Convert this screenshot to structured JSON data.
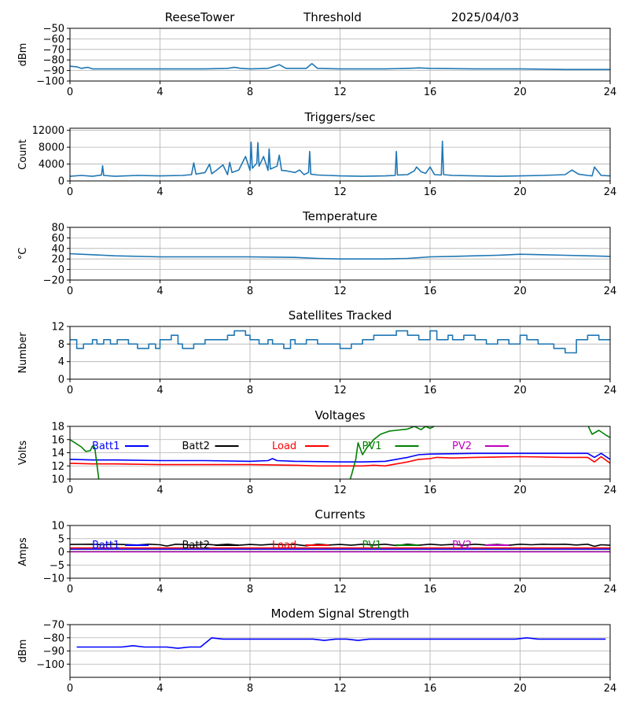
{
  "header": {
    "station": "ReeseTower",
    "mode": "Threshold",
    "date": "2025/04/03"
  },
  "chart_data": [
    {
      "type": "line",
      "title": "",
      "xlabel": "",
      "ylabel": "dBm",
      "xlim": [
        0,
        24
      ],
      "ylim": [
        -100,
        -50
      ],
      "xticks": [
        0,
        4,
        8,
        12,
        16,
        20,
        24
      ],
      "yticks": [
        -100,
        -90,
        -80,
        -70,
        -60,
        -50
      ],
      "grid": true,
      "series": [
        {
          "color": "#1f77b4",
          "x": [
            0,
            0.3,
            0.5,
            0.8,
            1,
            2,
            4,
            6,
            7,
            7.3,
            7.6,
            8,
            8.8,
            9.1,
            9.3,
            9.6,
            10,
            10.5,
            10.75,
            11,
            12,
            14,
            15,
            15.5,
            16,
            18,
            20,
            22,
            24
          ],
          "y": [
            -86,
            -86.5,
            -88,
            -87,
            -88.5,
            -88.5,
            -88.5,
            -88.5,
            -88,
            -87,
            -88,
            -88.5,
            -88,
            -86,
            -84.5,
            -88,
            -88,
            -88,
            -83.5,
            -88,
            -88.5,
            -88.5,
            -88,
            -87.5,
            -88,
            -88.5,
            -88.5,
            -89,
            -89
          ]
        }
      ]
    },
    {
      "type": "line",
      "title": "Triggers/sec",
      "xlabel": "",
      "ylabel": "Count",
      "xlim": [
        0,
        24
      ],
      "ylim": [
        0,
        12500
      ],
      "xticks": [
        0,
        4,
        8,
        12,
        16,
        20,
        24
      ],
      "yticks": [
        0,
        4000,
        8000,
        12000
      ],
      "grid": true,
      "series": [
        {
          "color": "#1f77b4",
          "x": [
            0,
            0.5,
            1,
            1.4,
            1.45,
            1.5,
            2,
            3,
            4,
            5,
            5.4,
            5.5,
            5.6,
            6,
            6.2,
            6.3,
            6.5,
            6.8,
            7,
            7.1,
            7.2,
            7.5,
            7.8,
            8,
            8.05,
            8.1,
            8.3,
            8.35,
            8.4,
            8.6,
            8.8,
            8.85,
            8.9,
            9.2,
            9.3,
            9.4,
            9.6,
            10,
            10.2,
            10.4,
            10.6,
            10.65,
            10.7,
            10.9,
            11,
            11.5,
            12,
            13,
            14,
            14.45,
            14.5,
            14.55,
            15,
            15.3,
            15.4,
            15.6,
            15.8,
            16,
            16.2,
            16.5,
            16.55,
            16.6,
            17,
            18,
            19,
            20,
            21,
            22,
            22.3,
            22.6,
            23,
            23.2,
            23.3,
            23.6,
            24
          ],
          "y": [
            1100,
            1300,
            1100,
            1400,
            3600,
            1300,
            1100,
            1300,
            1200,
            1300,
            1500,
            4300,
            1600,
            2000,
            4000,
            1700,
            2500,
            3800,
            1500,
            4400,
            2000,
            2600,
            5800,
            2500,
            9200,
            3000,
            4200,
            9100,
            3500,
            5800,
            2500,
            7600,
            2800,
            3500,
            6100,
            2500,
            2400,
            2000,
            2600,
            1500,
            2000,
            7000,
            1600,
            1500,
            1400,
            1300,
            1200,
            1100,
            1200,
            1300,
            7000,
            1400,
            1500,
            2400,
            3300,
            2200,
            1800,
            3300,
            1500,
            1400,
            9400,
            1500,
            1300,
            1200,
            1100,
            1200,
            1300,
            1500,
            2600,
            1600,
            1300,
            1200,
            3300,
            1300,
            1200
          ]
        }
      ]
    },
    {
      "type": "line",
      "title": "Temperature",
      "xlabel": "",
      "ylabel": "°C",
      "xlim": [
        0,
        24
      ],
      "ylim": [
        -20,
        80
      ],
      "xticks": [
        0,
        4,
        8,
        12,
        16,
        20,
        24
      ],
      "yticks": [
        -20,
        0,
        20,
        40,
        60,
        80
      ],
      "grid": true,
      "series": [
        {
          "color": "#1f77b4",
          "x": [
            0,
            0.5,
            1,
            2,
            4,
            6,
            8,
            10,
            11,
            12,
            13,
            14,
            15,
            16,
            17,
            18,
            19,
            20,
            21,
            22,
            23,
            24
          ],
          "y": [
            30,
            29,
            28,
            26,
            24,
            24,
            24,
            23,
            21,
            20,
            20,
            20,
            21,
            24,
            25,
            26,
            27,
            29,
            28,
            27,
            26,
            25
          ]
        }
      ]
    },
    {
      "type": "line",
      "title": "Satellites Tracked",
      "xlabel": "",
      "ylabel": "Number",
      "xlim": [
        0,
        24
      ],
      "ylim": [
        0,
        12
      ],
      "xticks": [
        0,
        4,
        8,
        12,
        16,
        20,
        24
      ],
      "yticks": [
        0,
        4,
        8,
        12
      ],
      "grid": true,
      "step": true,
      "series": [
        {
          "color": "#1f77b4",
          "x": [
            0,
            0.3,
            0.6,
            1,
            1.2,
            1.5,
            1.8,
            2.1,
            2.6,
            3,
            3.5,
            3.8,
            4,
            4.5,
            4.8,
            5,
            5.5,
            6,
            6.3,
            7,
            7.3,
            7.8,
            8,
            8.4,
            8.8,
            9,
            9.5,
            9.8,
            10,
            10.5,
            11,
            11.5,
            12,
            12.5,
            13,
            13.5,
            14,
            14.5,
            15,
            15.5,
            16,
            16.3,
            16.8,
            17,
            17.5,
            18,
            18.5,
            19,
            19.5,
            20,
            20.3,
            20.8,
            21,
            21.5,
            22,
            22.5,
            23,
            23.5,
            24
          ],
          "y": [
            9,
            7,
            8,
            9,
            8,
            9,
            8,
            9,
            8,
            7,
            8,
            7,
            9,
            10,
            8,
            7,
            8,
            9,
            9,
            10,
            11,
            10,
            9,
            8,
            9,
            8,
            7,
            9,
            8,
            9,
            8,
            8,
            7,
            8,
            9,
            10,
            10,
            11,
            10,
            9,
            11,
            9,
            10,
            9,
            10,
            9,
            8,
            9,
            8,
            10,
            9,
            8,
            8,
            7,
            6,
            9,
            10,
            9,
            9
          ]
        }
      ]
    },
    {
      "type": "line",
      "title": "Voltages",
      "xlabel": "",
      "ylabel": "Volts",
      "xlim": [
        0,
        24
      ],
      "ylim": [
        10,
        18
      ],
      "xticks": [
        0,
        4,
        8,
        12,
        16,
        20,
        24
      ],
      "yticks": [
        10,
        12,
        14,
        16,
        18
      ],
      "grid": true,
      "legend": "top, single row",
      "series": [
        {
          "name": "Batt1",
          "color": "#0000ff",
          "x": [
            0,
            1,
            2,
            4,
            6,
            8,
            8.8,
            9,
            9.2,
            10,
            12,
            13,
            14,
            14.5,
            15,
            15.5,
            16,
            18,
            20,
            22,
            23,
            23.3,
            23.6,
            24
          ],
          "y": [
            13,
            12.9,
            12.9,
            12.8,
            12.8,
            12.7,
            12.8,
            13.1,
            12.8,
            12.7,
            12.6,
            12.6,
            12.7,
            13,
            13.3,
            13.7,
            13.8,
            13.9,
            13.9,
            13.9,
            13.9,
            13.3,
            13.9,
            13
          ]
        },
        {
          "name": "Batt2",
          "color": "#000000",
          "x": [],
          "y": []
        },
        {
          "name": "Load",
          "color": "#ff0000",
          "x": [
            0,
            1,
            2,
            4,
            6,
            8,
            10,
            11,
            12,
            13,
            13.5,
            14,
            14.5,
            15,
            15.5,
            16,
            16.3,
            17,
            18,
            20,
            22,
            23,
            23.3,
            23.6,
            24
          ],
          "y": [
            12.4,
            12.3,
            12.3,
            12.2,
            12.2,
            12.2,
            12.1,
            12.0,
            12.0,
            12.0,
            12.1,
            12.0,
            12.3,
            12.6,
            13.0,
            13.1,
            13.3,
            13.2,
            13.3,
            13.4,
            13.3,
            13.3,
            12.6,
            13.4,
            12.4
          ]
        },
        {
          "name": "PV1",
          "color": "#008000",
          "x": [
            0,
            0.5,
            0.7,
            0.9,
            1.0,
            1.1,
            1.2,
            1.3,
            12.4,
            12.5,
            12.7,
            12.8,
            13,
            13.2,
            13.5,
            13.8,
            14.2,
            14.5,
            15,
            15.3,
            15.6,
            15.8,
            16,
            16.3,
            16.5,
            23,
            23.2,
            23.5,
            23.8,
            24
          ],
          "y": [
            16,
            14.9,
            14.2,
            14.3,
            15,
            14.8,
            12.2,
            9.5,
            9.5,
            10.5,
            13,
            15.5,
            13.7,
            14.8,
            16,
            16.8,
            17.3,
            17.4,
            17.6,
            18.0,
            17.5,
            18,
            17.7,
            18.2,
            18.3,
            18.2,
            16.8,
            17.4,
            16.7,
            16.3
          ]
        },
        {
          "name": "PV2",
          "color": "#bf00bf",
          "x": [],
          "y": []
        }
      ]
    },
    {
      "type": "line",
      "title": "Currents",
      "xlabel": "",
      "ylabel": "Amps",
      "xlim": [
        0,
        24
      ],
      "ylim": [
        -10,
        10
      ],
      "xticks": [
        0,
        4,
        8,
        12,
        16,
        20,
        24
      ],
      "yticks": [
        -10,
        -5,
        0,
        5,
        10
      ],
      "grid": true,
      "legend": "top, single row",
      "series": [
        {
          "name": "Batt1",
          "color": "#0000ff",
          "x": [
            0,
            24
          ],
          "y": [
            1.0,
            1.0
          ]
        },
        {
          "name": "Batt2",
          "color": "#000000",
          "x": [
            0,
            1,
            1.5,
            2,
            3,
            3.5,
            4,
            4.3,
            4.7,
            5,
            5.5,
            6,
            6.5,
            7,
            7.5,
            8,
            8.5,
            9,
            9.5,
            10,
            10.5,
            11,
            11.5,
            12,
            12.5,
            13,
            13.5,
            14,
            14.5,
            15,
            15.5,
            16,
            16.5,
            17,
            17.5,
            18,
            18.5,
            19,
            19.5,
            20,
            20.5,
            21,
            21.5,
            22,
            22.5,
            23,
            23.3,
            23.6,
            24
          ],
          "y": [
            2.8,
            2.9,
            2.7,
            2.9,
            2.6,
            2.9,
            2.7,
            2.2,
            2.9,
            2.8,
            2.5,
            2.9,
            2.6,
            2.9,
            2.5,
            2.8,
            2.6,
            2.9,
            2.7,
            2.8,
            2.3,
            2.9,
            2.6,
            2.8,
            2.5,
            2.9,
            2.6,
            2.9,
            2.4,
            2.9,
            2.5,
            2.9,
            2.6,
            2.8,
            2.5,
            2.9,
            2.6,
            2.8,
            2.5,
            2.9,
            2.7,
            2.9,
            2.8,
            2.9,
            2.6,
            2.9,
            2.1,
            2.7,
            2.5
          ]
        },
        {
          "name": "Load",
          "color": "#ff0000",
          "x": [
            0,
            24
          ],
          "y": [
            1.5,
            1.5
          ]
        },
        {
          "name": "PV1",
          "color": "#008000",
          "x": [
            0,
            24
          ],
          "y": [
            0.1,
            0.1
          ]
        },
        {
          "name": "PV2",
          "color": "#bf00bf",
          "x": [
            0,
            24
          ],
          "y": [
            0,
            0
          ]
        }
      ]
    },
    {
      "type": "line",
      "title": "Modem Signal Strength",
      "xlabel": "",
      "ylabel": "dBm",
      "xlim": [
        0,
        24
      ],
      "ylim": [
        -110,
        -70
      ],
      "xticks": [
        0,
        4,
        8,
        12,
        16,
        20,
        24
      ],
      "yticks": [
        -100,
        -90,
        -80,
        -70
      ],
      "grid": true,
      "series": [
        {
          "color": "#0000ff",
          "x": [
            0.3,
            2.3,
            2.8,
            3.3,
            4.3,
            4.8,
            5.3,
            5.8,
            6.3,
            6.8,
            7.3,
            10.8,
            11.3,
            11.8,
            12.3,
            12.8,
            13.3,
            19.8,
            20.3,
            20.8,
            23.8
          ],
          "y": [
            -87,
            -87,
            -86,
            -87,
            -87,
            -88,
            -87,
            -87,
            -80,
            -81,
            -81,
            -81,
            -82,
            -81,
            -81,
            -82,
            -81,
            -81,
            -80,
            -81,
            -81
          ]
        }
      ]
    }
  ]
}
